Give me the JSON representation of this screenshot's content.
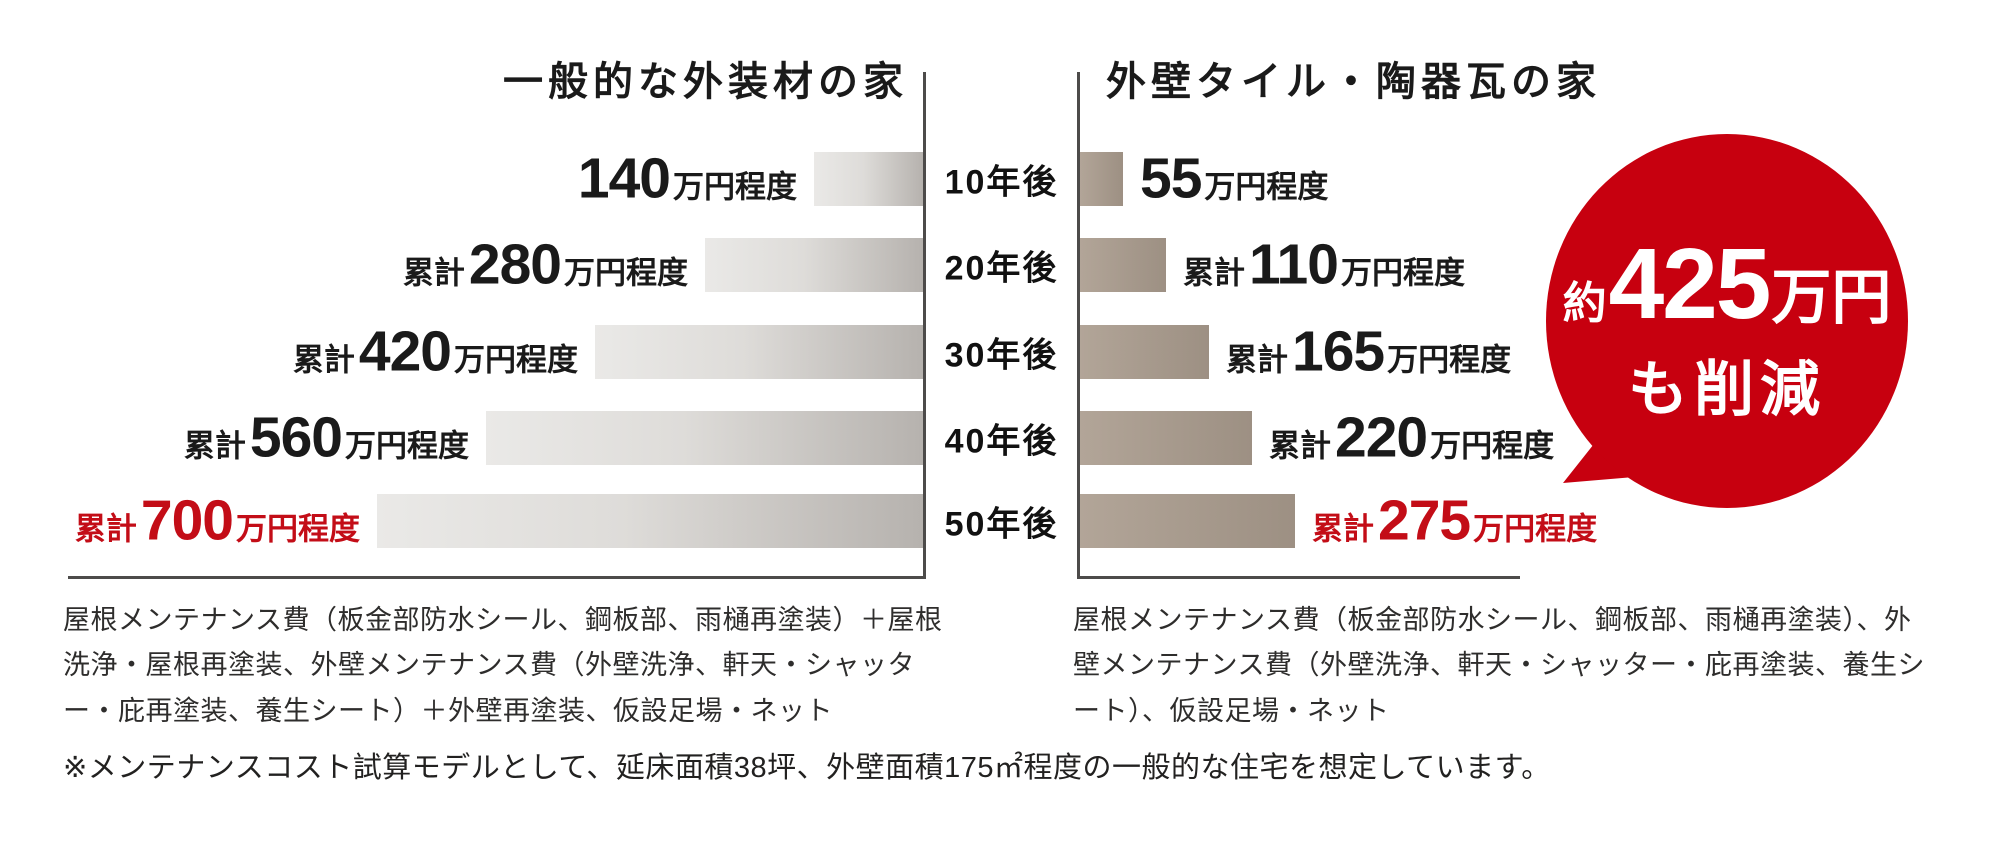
{
  "titles": {
    "left": "一般的な外装材の家",
    "right": "外壁タイル・陶器瓦の家"
  },
  "chart_data": {
    "type": "bar",
    "orientation": "horizontal",
    "categories": [
      "10年後",
      "20年後",
      "30年後",
      "40年後",
      "50年後"
    ],
    "series": [
      {
        "name": "一般的な外装材の家",
        "side": "left",
        "values": [
          140,
          280,
          420,
          560,
          700
        ],
        "label_prefixes": [
          "",
          "累計",
          "累計",
          "累計",
          "累計"
        ],
        "label_suffix": "万円程度"
      },
      {
        "name": "外壁タイル・陶器瓦の家",
        "side": "right",
        "values": [
          55,
          110,
          165,
          220,
          275
        ],
        "label_prefixes": [
          "",
          "累計",
          "累計",
          "累計",
          "累計"
        ],
        "label_suffix": "万円程度"
      }
    ],
    "unit": "万円",
    "highlighted_category": "50年後",
    "xlim": [
      0,
      720
    ],
    "grid": false,
    "legend_position": "none"
  },
  "badge": {
    "line1_prefix": "約",
    "line1_value": "425",
    "line1_suffix": "万円",
    "line2": "も削減"
  },
  "footnotes": {
    "left": "屋根メンテナンス費（板金部防水シール、鋼板部、雨樋再塗装）＋屋根洗浄・屋根再塗装、外壁メンテナンス費（外壁洗浄、軒天・シャッター・庇再塗装、養生シート）＋外壁再塗装、仮設足場・ネット",
    "right": "屋根メンテナンス費（板金部防水シール、鋼板部、雨樋再塗装）、外壁メンテナンス費（外壁洗浄、軒天・シャッター・庇再塗装、養生シート）、仮設足場・ネット",
    "bottom": "※メンテナンスコスト試算モデルとして、延床面積38坪、外壁面積175㎡程度の一般的な住宅を想定しています。"
  },
  "colors": {
    "accent_red": "#c7000f",
    "red_label_text": "#c30d17",
    "axis": "#4d4b4a",
    "left_bar_gradient_start": "#eae9e7",
    "left_bar_gradient_end": "#b6b2ae",
    "right_bar_gradient_start": "#b2a598",
    "right_bar_gradient_end": "#9d9083"
  }
}
